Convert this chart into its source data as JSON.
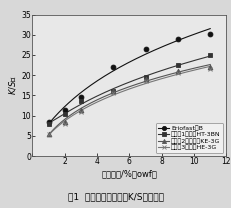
{
  "x": [
    1,
    2,
    3,
    5,
    7,
    9,
    11
  ],
  "series": [
    {
      "label": "Eriofast红B",
      "marker": "o",
      "color": "#111111",
      "markersize": 3.5,
      "y": [
        8.5,
        11.5,
        14.5,
        22.0,
        26.5,
        29.0,
        30.2
      ]
    },
    {
      "label": "对比组1活性红HT-3BN",
      "marker": "s",
      "color": "#333333",
      "markersize": 3.5,
      "y": [
        8.0,
        10.5,
        13.5,
        16.0,
        19.5,
        22.5,
        25.0
      ]
    },
    {
      "label": "对比组2活性大红KE-3G",
      "marker": "^",
      "color": "#555555",
      "markersize": 3.5,
      "y": [
        5.5,
        8.5,
        11.5,
        16.0,
        19.0,
        21.0,
        22.0
      ]
    },
    {
      "label": "对比组3活性红HE-3G",
      "marker": "x",
      "color": "#777777",
      "markersize": 3.5,
      "y": [
        5.5,
        8.0,
        11.0,
        15.5,
        18.5,
        20.5,
        21.5
      ]
    }
  ],
  "xlabel": "染料用量/%（owf）",
  "ylabel": "K/S值",
  "xlim": [
    0,
    12
  ],
  "ylim": [
    0,
    35
  ],
  "xticks": [
    0,
    2,
    4,
    6,
    8,
    10,
    12
  ],
  "yticks": [
    0,
    5,
    10,
    15,
    20,
    25,
    30,
    35
  ],
  "caption": "图1  活性红染料用量与K/S值的关系",
  "fig_bg": "#d8d8d8",
  "axes_bg": "#e8e8e8",
  "legend_fontsize": 4.5,
  "axis_fontsize": 6.0,
  "tick_fontsize": 5.5,
  "caption_fontsize": 6.5
}
